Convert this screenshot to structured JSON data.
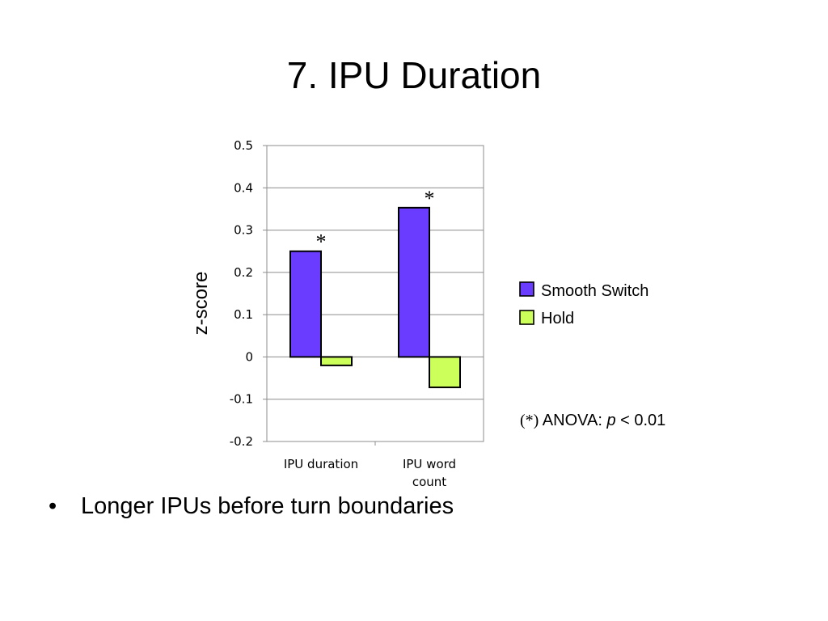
{
  "slide": {
    "title": "7. IPU Duration",
    "bullet_symbol": "•",
    "bullet": "Longer IPUs before turn boundaries"
  },
  "chart_data": {
    "type": "bar",
    "categories": [
      "IPU duration",
      "IPU word count"
    ],
    "category_lines": [
      [
        "IPU duration"
      ],
      [
        "IPU word",
        "count"
      ]
    ],
    "series": [
      {
        "name": "Smooth Switch",
        "values": [
          0.25,
          0.353
        ],
        "color": "#6a3cff"
      },
      {
        "name": "Hold",
        "values": [
          -0.02,
          -0.072
        ],
        "color": "#ccff5a"
      }
    ],
    "ylabel": "z-score",
    "ylim": [
      -0.2,
      0.5
    ],
    "yticks": [
      0.5,
      0.4,
      0.3,
      0.2,
      0.1,
      0,
      -0.1,
      -0.2
    ],
    "ytick_labels": [
      "0.5",
      "0.4",
      "0.3",
      "0.2",
      "0.1",
      "0",
      "-0.1",
      "-0.2"
    ],
    "grid": true,
    "legend_position": "right",
    "significance_marker": "*",
    "significant": [
      true,
      true
    ],
    "note": {
      "marker": "(*)",
      "text_before": " ANOVA: ",
      "p": "p",
      "text_after": " < 0.01"
    }
  }
}
